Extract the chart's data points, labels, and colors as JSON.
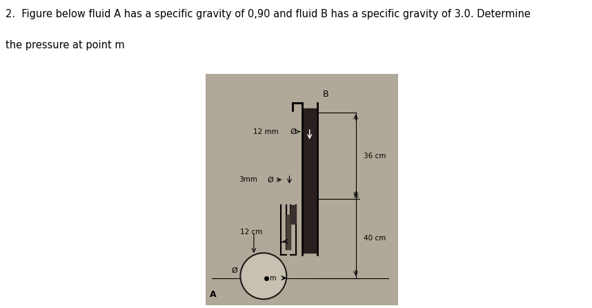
{
  "title_line1": "2.  Figure below fluid A has a specific gravity of 0,90 and fluid B has a specific gravity of 3.0. Determine",
  "title_line2": "the pressure at point m",
  "bg_color": "#c8c0b0",
  "img_bg": "#b8b0a0",
  "label_12mm": "12 mm",
  "label_3mm": "3mm",
  "label_36cm": "36 cm",
  "label_40cm": "40 cm",
  "label_12cm": "12 cm",
  "label_A": "A",
  "label_B": "B",
  "label_m": "m",
  "text_color": "#000000",
  "box_bg": "#d8d0c0",
  "tube_color": "#1a1a1a",
  "fluid_dark": "#2a2a2a",
  "fluid_mid": "#5a5040"
}
